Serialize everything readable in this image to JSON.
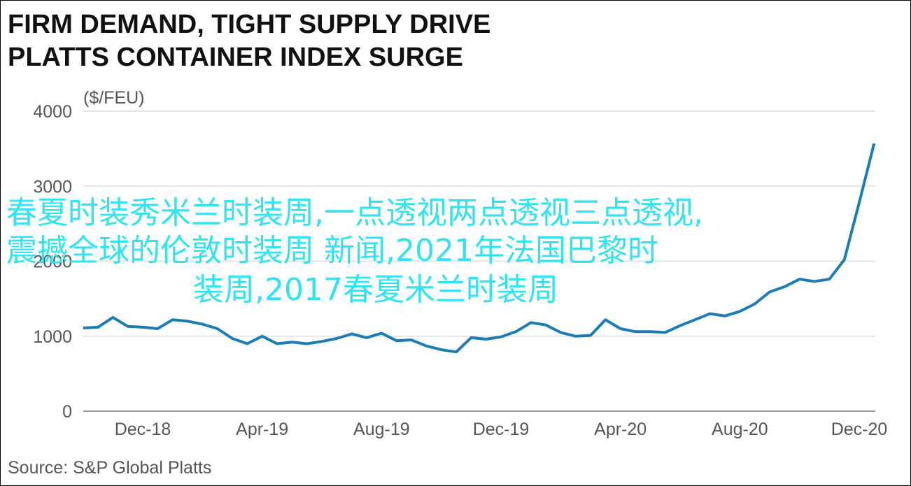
{
  "chart_data": {
    "type": "line",
    "title": [
      "FIRM DEMAND, TIGHT SUPPLY DRIVE",
      "PLATTS CONTAINER INDEX SURGE"
    ],
    "y_unit": "($/FEU)",
    "source": "Source: S&P Global Platts",
    "categories": [
      null,
      null,
      null,
      null,
      "Dec-18",
      null,
      null,
      null,
      null,
      null,
      null,
      null,
      "Apr-19",
      null,
      null,
      null,
      null,
      null,
      null,
      null,
      "Aug-19",
      null,
      null,
      null,
      null,
      null,
      null,
      null,
      "Dec-19",
      null,
      null,
      null,
      null,
      null,
      null,
      null,
      "Apr-20",
      null,
      null,
      null,
      null,
      null,
      null,
      null,
      "Aug-20",
      null,
      null,
      null,
      null,
      null,
      null,
      null,
      "Dec-20",
      null
    ],
    "series": [
      {
        "color": "#1b7db5",
        "values": [
          1110,
          1120,
          1250,
          1130,
          1120,
          1100,
          1220,
          1200,
          1160,
          1100,
          970,
          900,
          1000,
          900,
          920,
          900,
          930,
          970,
          1030,
          980,
          1040,
          940,
          950,
          870,
          820,
          790,
          980,
          960,
          990,
          1060,
          1180,
          1150,
          1050,
          1000,
          1010,
          1220,
          1100,
          1060,
          1060,
          1050,
          1140,
          1220,
          1300,
          1270,
          1330,
          1430,
          1590,
          1660,
          1760,
          1730,
          1760,
          2020,
          2780,
          3570
        ]
      }
    ],
    "ylim": [
      0,
      4000
    ],
    "yticks": [
      0,
      1000,
      2000,
      3000,
      4000
    ],
    "grid": true,
    "watermark": [
      "春夏时装秀米兰时装周,一点透视两点透视三点透视,",
      "震撼全球的伦敦时装周 新闻,2021年法国巴黎时",
      "装周,2017春夏米兰时装周"
    ]
  }
}
